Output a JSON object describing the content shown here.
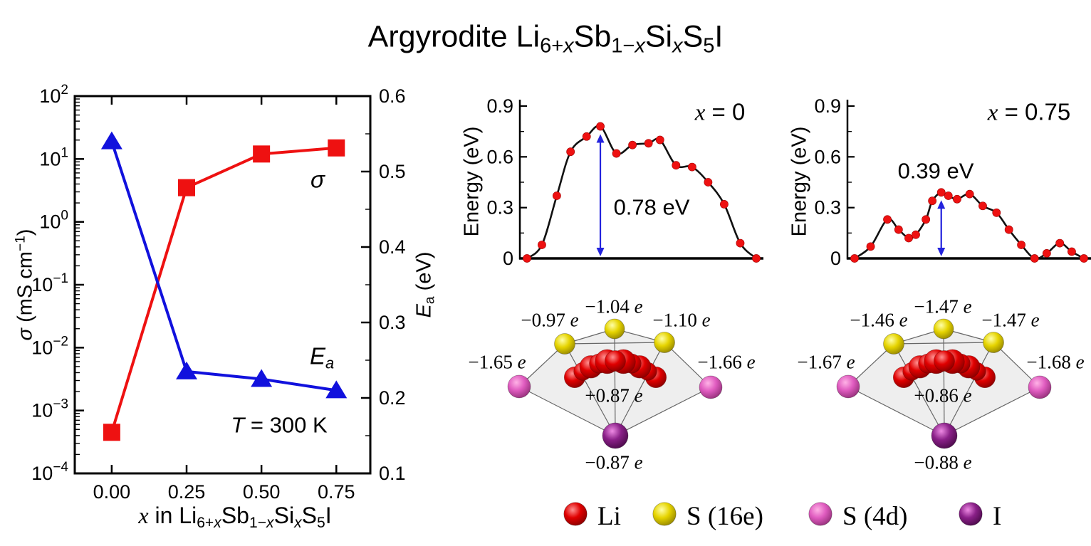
{
  "title_segments": [
    {
      "t": "Argyrodite Li"
    },
    {
      "t": "6+",
      "sub": true
    },
    {
      "t": "x",
      "sub": true,
      "it": true
    },
    {
      "t": "Sb"
    },
    {
      "t": "1−",
      "sub": true
    },
    {
      "t": "x",
      "sub": true,
      "it": true
    },
    {
      "t": "Si"
    },
    {
      "t": "x",
      "sub": true,
      "it": true
    },
    {
      "t": "S"
    },
    {
      "t": "5",
      "sub": true
    },
    {
      "t": "I"
    }
  ],
  "colors": {
    "sigma_red": "#ee1111",
    "ea_blue": "#1111dd",
    "curve_black": "#111111",
    "dot_red": "#ee1111",
    "arrow_blue": "#2222dd",
    "axis_black": "#000000",
    "poly_edge": "#666666",
    "poly_face": "rgba(150,150,150,0.16)"
  },
  "sphere_colors": {
    "li": {
      "light": "#ff9090",
      "base": "#e00000",
      "dark": "#7c0000"
    },
    "s16e": {
      "light": "#ffffa8",
      "base": "#e6d400",
      "dark": "#8a7c00"
    },
    "s4d": {
      "light": "#ffb2e6",
      "base": "#e05cc0",
      "dark": "#8a2a70"
    },
    "i": {
      "light": "#ee8ae4",
      "base": "#8a2088",
      "dark": "#430742"
    }
  },
  "chart_data": [
    {
      "id": "sigma_ea_vs_x",
      "type": "line",
      "x_label_segments": [
        {
          "t": "x",
          "it": true,
          "serif": true
        },
        {
          "t": " in Li"
        },
        {
          "t": "6+",
          "sub": true
        },
        {
          "t": "x",
          "sub": true,
          "it": true
        },
        {
          "t": "Sb"
        },
        {
          "t": "1−",
          "sub": true
        },
        {
          "t": "x",
          "sub": true,
          "it": true
        },
        {
          "t": "Si"
        },
        {
          "t": "x",
          "sub": true,
          "it": true
        },
        {
          "t": "S"
        },
        {
          "t": "5",
          "sub": true
        },
        {
          "t": "I"
        }
      ],
      "x_ticks": [
        "0.00",
        "0.25",
        "0.50",
        "0.75"
      ],
      "x_values": [
        0,
        0.25,
        0.5,
        0.75
      ],
      "y_left": {
        "scale": "log",
        "unit": "mS cm−1",
        "exponents": [
          2,
          1,
          0,
          -1,
          -2,
          -3,
          -4
        ],
        "range": [
          0.0001,
          100
        ],
        "label_segments": [
          {
            "t": "σ",
            "it": true
          },
          {
            "t": " (mS cm"
          },
          {
            "t": "−1",
            "sup": true
          },
          {
            "t": ")"
          }
        ]
      },
      "y_right": {
        "scale": "linear",
        "unit": "eV",
        "ticks": [
          "0.6",
          "0.5",
          "0.4",
          "0.3",
          "0.2",
          "0.1"
        ],
        "tick_values": [
          0.6,
          0.5,
          0.4,
          0.3,
          0.2,
          0.1
        ],
        "range": [
          0.1,
          0.6
        ],
        "label_segments": [
          {
            "t": "E",
            "it": true
          },
          {
            "t": "a",
            "sub": true
          },
          {
            "t": " (eV)"
          }
        ]
      },
      "series": [
        {
          "name": "sigma",
          "marker": "square",
          "axis": "left",
          "color_key": "sigma_red",
          "values": [
            0.00045,
            3.5,
            12,
            15
          ],
          "label": "σ"
        },
        {
          "name": "Ea",
          "marker": "triangle",
          "axis": "right",
          "color_key": "ea_blue",
          "values": [
            0.54,
            0.235,
            0.225,
            0.21
          ],
          "label_segments": [
            {
              "t": "E",
              "it": true
            },
            {
              "t": "a",
              "sub": true
            }
          ]
        }
      ],
      "annotation_segments": [
        {
          "t": "T",
          "it": true
        },
        {
          "t": " = 300 K"
        }
      ]
    },
    {
      "id": "neb_x0",
      "type": "line",
      "title_segments": [
        {
          "t": "x",
          "it": true,
          "serif": true
        },
        {
          "t": " = 0"
        }
      ],
      "ylabel": "Energy (eV)",
      "ylim": [
        0,
        0.9
      ],
      "yticks": [
        "0",
        "0.3",
        "0.6",
        "0.9"
      ],
      "ytick_values": [
        0,
        0.3,
        0.6,
        0.9
      ],
      "barrier_label": "0.78 eV",
      "peak_index": 5,
      "x": [
        0,
        0.065,
        0.13,
        0.19,
        0.26,
        0.32,
        0.39,
        0.46,
        0.53,
        0.58,
        0.65,
        0.72,
        0.79,
        0.86,
        0.93,
        1
      ],
      "energy": [
        0,
        0.08,
        0.37,
        0.63,
        0.72,
        0.78,
        0.62,
        0.67,
        0.68,
        0.7,
        0.55,
        0.54,
        0.45,
        0.32,
        0.09,
        0
      ]
    },
    {
      "id": "neb_x075",
      "type": "line",
      "title_segments": [
        {
          "t": "x",
          "it": true,
          "serif": true
        },
        {
          "t": " = 0.75"
        }
      ],
      "ylabel": "Energy (eV)",
      "ylim": [
        0,
        0.9
      ],
      "yticks": [
        "0",
        "0.3",
        "0.6",
        "0.9"
      ],
      "ytick_values": [
        0,
        0.3,
        0.6,
        0.9
      ],
      "barrier_label": "0.39 eV",
      "peak_index": 8,
      "x": [
        0,
        0.07,
        0.143,
        0.192,
        0.236,
        0.267,
        0.311,
        0.339,
        0.378,
        0.409,
        0.447,
        0.502,
        0.559,
        0.619,
        0.673,
        0.727,
        0.785,
        0.838,
        0.895,
        0.947,
        1
      ],
      "energy": [
        0,
        0.07,
        0.23,
        0.17,
        0.12,
        0.14,
        0.23,
        0.34,
        0.39,
        0.37,
        0.35,
        0.38,
        0.31,
        0.27,
        0.17,
        0.08,
        0,
        0.03,
        0.09,
        0.04,
        0
      ]
    }
  ],
  "structures": [
    {
      "id": "x0",
      "unit": "e",
      "charges": {
        "s16e_left": "−0.97",
        "s16e_top": "−1.04",
        "s16e_right": "−1.10",
        "s4d_left": "−1.65",
        "s4d_right": "−1.66",
        "li": "+0.87",
        "iodine": "−0.87"
      }
    },
    {
      "id": "x075",
      "unit": "e",
      "charges": {
        "s16e_left": "−1.46",
        "s16e_top": "−1.47",
        "s16e_right": "−1.47",
        "s4d_left": "−1.67",
        "s4d_right": "−1.68",
        "li": "+0.86",
        "iodine": "−0.88"
      }
    }
  ],
  "legend": {
    "items": [
      {
        "sphere": "li",
        "label": "Li"
      },
      {
        "sphere": "s16e",
        "label": "S (16e)"
      },
      {
        "sphere": "s4d",
        "label": "S (4d)"
      },
      {
        "sphere": "i",
        "label": "I"
      }
    ]
  }
}
